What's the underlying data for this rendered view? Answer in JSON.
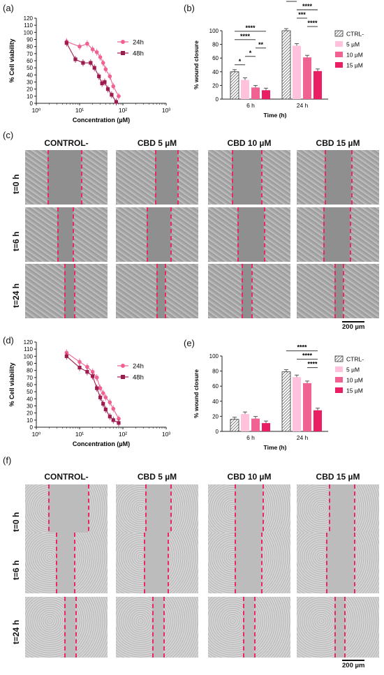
{
  "panel_labels": {
    "a": "(a)",
    "b": "(b)",
    "c": "(c)",
    "d": "(d)",
    "e": "(e)",
    "f": "(f)"
  },
  "grid_labels": {
    "columns": [
      "CONTROL-",
      "CBD 5 µM",
      "CBD 10 µM",
      "CBD 15 µM"
    ],
    "rows": [
      "t=0 h",
      "t=6 h",
      "t=24 h"
    ],
    "scale_bar": "200 µm"
  },
  "colors": {
    "h24": "#f06292",
    "h48": "#9e1b4f",
    "ctrl": "#ffffff",
    "um5": "#ffc1db",
    "um10": "#f06292",
    "um15": "#e91e63",
    "line": "#e8285e"
  },
  "chart_data": [
    {
      "id": "a",
      "type": "scatter",
      "ylabel": "% Cell viability",
      "xlabel": "Concentration (µM)",
      "xscale": "log",
      "xlim": [
        1,
        1000
      ],
      "ylim": [
        0,
        120
      ],
      "xticks": [
        "10⁰",
        "10¹",
        "10²",
        "10³"
      ],
      "yticks": [
        0,
        10,
        20,
        30,
        40,
        50,
        60,
        70,
        80,
        90,
        100,
        110,
        120
      ],
      "legend": [
        "24h",
        "48h"
      ],
      "series": [
        {
          "name": "24h",
          "marker": "circle",
          "color": "#f06292",
          "x": [
            5,
            10,
            15,
            20,
            25,
            30,
            35,
            40,
            50,
            60,
            80
          ],
          "y": [
            87,
            80,
            84,
            76,
            72,
            65,
            57,
            48,
            38,
            24,
            10
          ]
        },
        {
          "name": "48h",
          "marker": "square",
          "color": "#9e1b4f",
          "x": [
            5,
            8,
            12,
            18,
            22,
            28,
            33,
            38,
            45,
            55,
            70
          ],
          "y": [
            85,
            62,
            57,
            57,
            50,
            38,
            28,
            30,
            20,
            12,
            2
          ]
        }
      ]
    },
    {
      "id": "b",
      "type": "bar",
      "ylabel": "% wound closure",
      "xlabel": "Time (h)",
      "categories": [
        "6 h",
        "24 h"
      ],
      "ylim": [
        0,
        100
      ],
      "yticks": [
        0,
        20,
        40,
        60,
        80,
        100
      ],
      "series": [
        {
          "name": "CTRL-",
          "values": [
            40,
            100
          ]
        },
        {
          "name": "5 µM",
          "values": [
            28,
            78
          ]
        },
        {
          "name": "10 µM",
          "values": [
            17,
            61
          ]
        },
        {
          "name": "15 µM",
          "values": [
            13,
            41
          ]
        }
      ],
      "significance": [
        {
          "label": "*",
          "group": 0,
          "from": 0,
          "to": 1,
          "level": 0
        },
        {
          "label": "*",
          "group": 0,
          "from": 1,
          "to": 2,
          "level": 1
        },
        {
          "label": "**",
          "group": 0,
          "from": 2,
          "to": 3,
          "level": 2
        },
        {
          "label": "****",
          "group": 0,
          "from": 0,
          "to": 2,
          "level": 3
        },
        {
          "label": "****",
          "group": 0,
          "from": 0,
          "to": 3,
          "level": 4
        },
        {
          "label": "****",
          "group": 1,
          "from": 2,
          "to": 3,
          "level": 0
        },
        {
          "label": "***",
          "group": 1,
          "from": 1,
          "to": 2,
          "level": 1
        },
        {
          "label": "****",
          "group": 1,
          "from": 1,
          "to": 3,
          "level": 2
        },
        {
          "label": "****",
          "group": 1,
          "from": 0,
          "to": 1,
          "level": 3
        },
        {
          "label": "****",
          "group": 1,
          "from": 0,
          "to": 2,
          "level": 4
        },
        {
          "label": "****",
          "group": 1,
          "from": 0,
          "to": 3,
          "level": 5
        }
      ]
    },
    {
      "id": "d",
      "type": "scatter",
      "ylabel": "% Cell viability",
      "xlabel": "Concentration (µM)",
      "xscale": "log",
      "xlim": [
        1,
        1000
      ],
      "ylim": [
        0,
        120
      ],
      "xticks": [
        "10⁰",
        "10¹",
        "10²",
        "10³"
      ],
      "yticks": [
        0,
        10,
        20,
        30,
        40,
        50,
        60,
        70,
        80,
        90,
        100,
        110,
        120
      ],
      "legend": [
        "24h",
        "48h"
      ],
      "series": [
        {
          "name": "24h",
          "marker": "circle",
          "color": "#f06292",
          "x": [
            5,
            10,
            15,
            20,
            25,
            30,
            35,
            40,
            50,
            60,
            80
          ],
          "y": [
            105,
            92,
            85,
            78,
            70,
            55,
            48,
            42,
            35,
            26,
            12
          ]
        },
        {
          "name": "48h",
          "marker": "square",
          "color": "#9e1b4f",
          "x": [
            5,
            10,
            15,
            20,
            25,
            30,
            35,
            40,
            50,
            60,
            80
          ],
          "y": [
            100,
            84,
            78,
            72,
            55,
            42,
            33,
            25,
            15,
            10,
            6
          ]
        }
      ]
    },
    {
      "id": "e",
      "type": "bar",
      "ylabel": "% wound closure",
      "xlabel": "Time (h)",
      "categories": [
        "6 h",
        "24 h"
      ],
      "ylim": [
        0,
        100
      ],
      "yticks": [
        0,
        20,
        40,
        60,
        80,
        100
      ],
      "series": [
        {
          "name": "CTRL-",
          "values": [
            16,
            79
          ]
        },
        {
          "name": "5 µM",
          "values": [
            23,
            72
          ]
        },
        {
          "name": "10 µM",
          "values": [
            17,
            64
          ]
        },
        {
          "name": "15 µM",
          "values": [
            11,
            28
          ]
        }
      ],
      "significance": [
        {
          "label": "****",
          "group": 1,
          "from": 2,
          "to": 3,
          "level": 0
        },
        {
          "label": "****",
          "group": 1,
          "from": 1,
          "to": 3,
          "level": 1
        },
        {
          "label": "****",
          "group": 1,
          "from": 0,
          "to": 3,
          "level": 2
        }
      ]
    }
  ]
}
